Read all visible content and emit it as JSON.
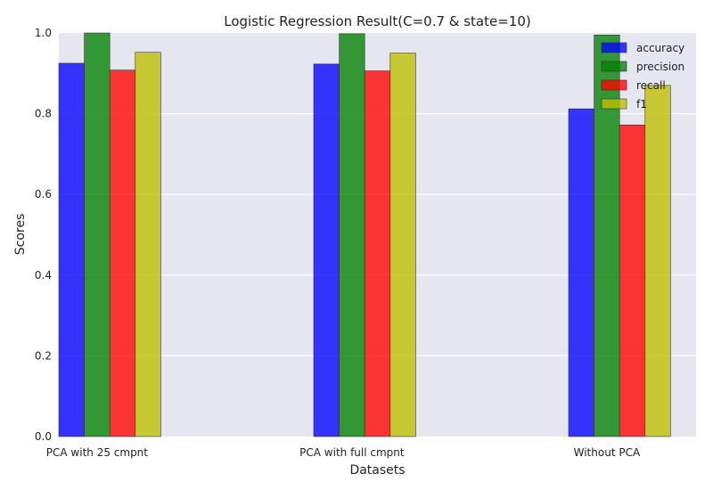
{
  "chart_data": {
    "type": "bar",
    "title": "Logistic Regression Result(C=0.7 & state=10)",
    "xlabel": "Datasets",
    "ylabel": "Scores",
    "ylim": [
      0,
      1.0
    ],
    "yticks": [
      "0.0",
      "0.2",
      "0.4",
      "0.6",
      "0.8",
      "1.0"
    ],
    "grid": true,
    "legend_position": "top-right",
    "categories": [
      "PCA with 25 cmpnt",
      "PCA with full cmpnt",
      "Without PCA"
    ],
    "series": [
      {
        "name": "accuracy",
        "color": "#0000ff",
        "values": [
          0.925,
          0.923,
          0.812
        ]
      },
      {
        "name": "precision",
        "color": "#008000",
        "values": [
          1.0,
          0.998,
          0.995
        ]
      },
      {
        "name": "recall",
        "color": "#ff0000",
        "values": [
          0.908,
          0.906,
          0.772
        ]
      },
      {
        "name": "f1",
        "color": "#bfbf00",
        "values": [
          0.952,
          0.95,
          0.87
        ]
      }
    ]
  }
}
